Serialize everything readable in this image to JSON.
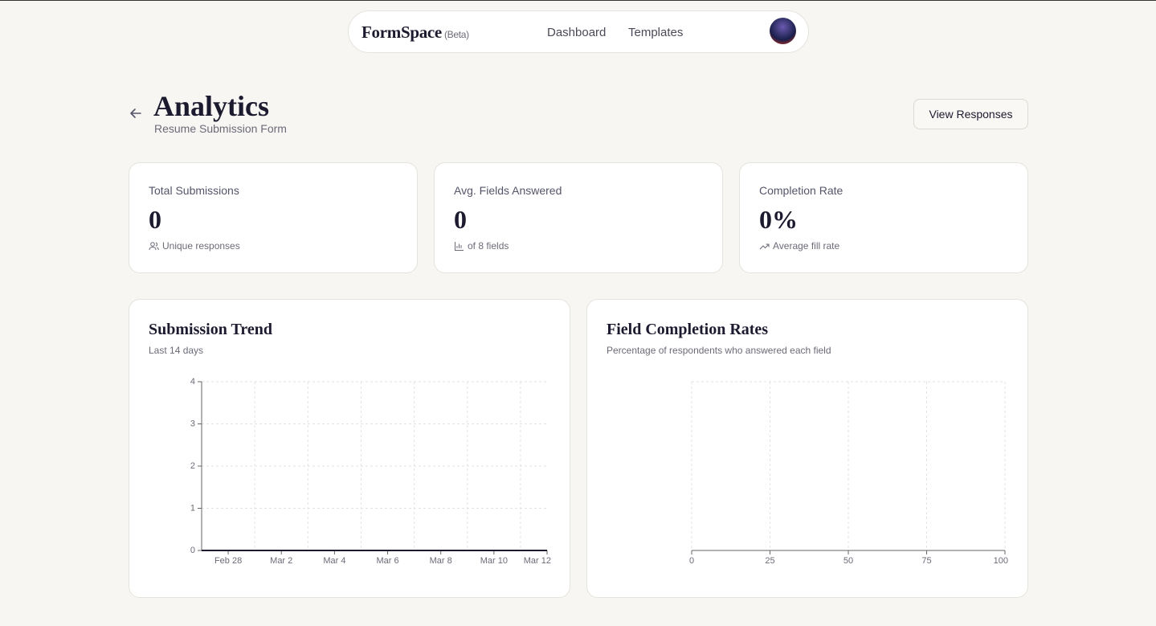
{
  "nav": {
    "brand": "FormSpace",
    "badge": "(Beta)",
    "links": [
      "Dashboard",
      "Templates"
    ]
  },
  "header": {
    "title": "Analytics",
    "subtitle": "Resume Submission Form",
    "button": "View Responses"
  },
  "stats": [
    {
      "label": "Total Submissions",
      "value": "0",
      "note": "Unique responses"
    },
    {
      "label": "Avg. Fields Answered",
      "value": "0",
      "note": "of 8 fields"
    },
    {
      "label": "Completion Rate",
      "value": "0%",
      "note": "Average fill rate"
    }
  ],
  "chart_data": [
    {
      "type": "line",
      "title": "Submission Trend",
      "subtitle": "Last 14 days",
      "categories": [
        null,
        "Feb 28",
        null,
        "Mar 2",
        null,
        "Mar 4",
        null,
        "Mar 6",
        null,
        "Mar 8",
        null,
        "Mar 10",
        null,
        "Mar 12"
      ],
      "series": [
        {
          "color": "#1c1a2e",
          "values": [
            0,
            0,
            0,
            0,
            0,
            0,
            0,
            0,
            0,
            0,
            0,
            0,
            0,
            0
          ]
        }
      ],
      "ylim": [
        0,
        4
      ],
      "yticks": [
        0,
        1,
        2,
        3,
        4
      ],
      "grid": true
    },
    {
      "type": "hbar",
      "title": "Field Completion Rates",
      "subtitle": "Percentage of respondents who answered each field",
      "categories": [],
      "values": [],
      "color": "#1c1a2e",
      "xlim": [
        0,
        100
      ],
      "xticks": [
        0,
        25,
        50,
        75,
        100
      ],
      "grid": true
    }
  ]
}
